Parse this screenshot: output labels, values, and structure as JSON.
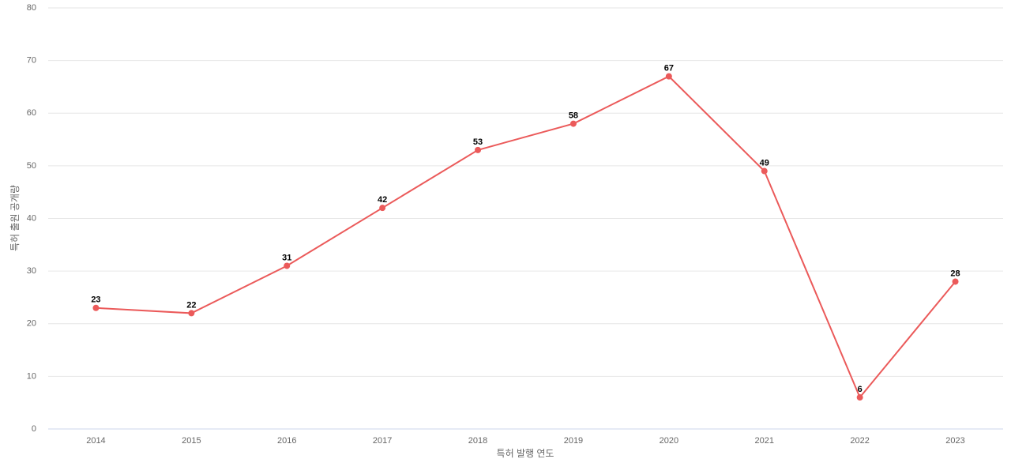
{
  "chart_data": {
    "type": "line",
    "x_label": "특허 발행 연도",
    "y_label": "특허 출원 공개량",
    "categories": [
      "2014",
      "2015",
      "2016",
      "2017",
      "2018",
      "2019",
      "2020",
      "2021",
      "2022",
      "2023"
    ],
    "series": [
      {
        "name": "특허 출원 공개량",
        "color": "#eb5a5a",
        "values": [
          23,
          22,
          31,
          42,
          53,
          58,
          67,
          49,
          6,
          28
        ]
      }
    ],
    "ylim": [
      0,
      80
    ],
    "yticks": [
      0,
      10,
      20,
      30,
      40,
      50,
      60,
      70,
      80
    ],
    "grid": true
  }
}
